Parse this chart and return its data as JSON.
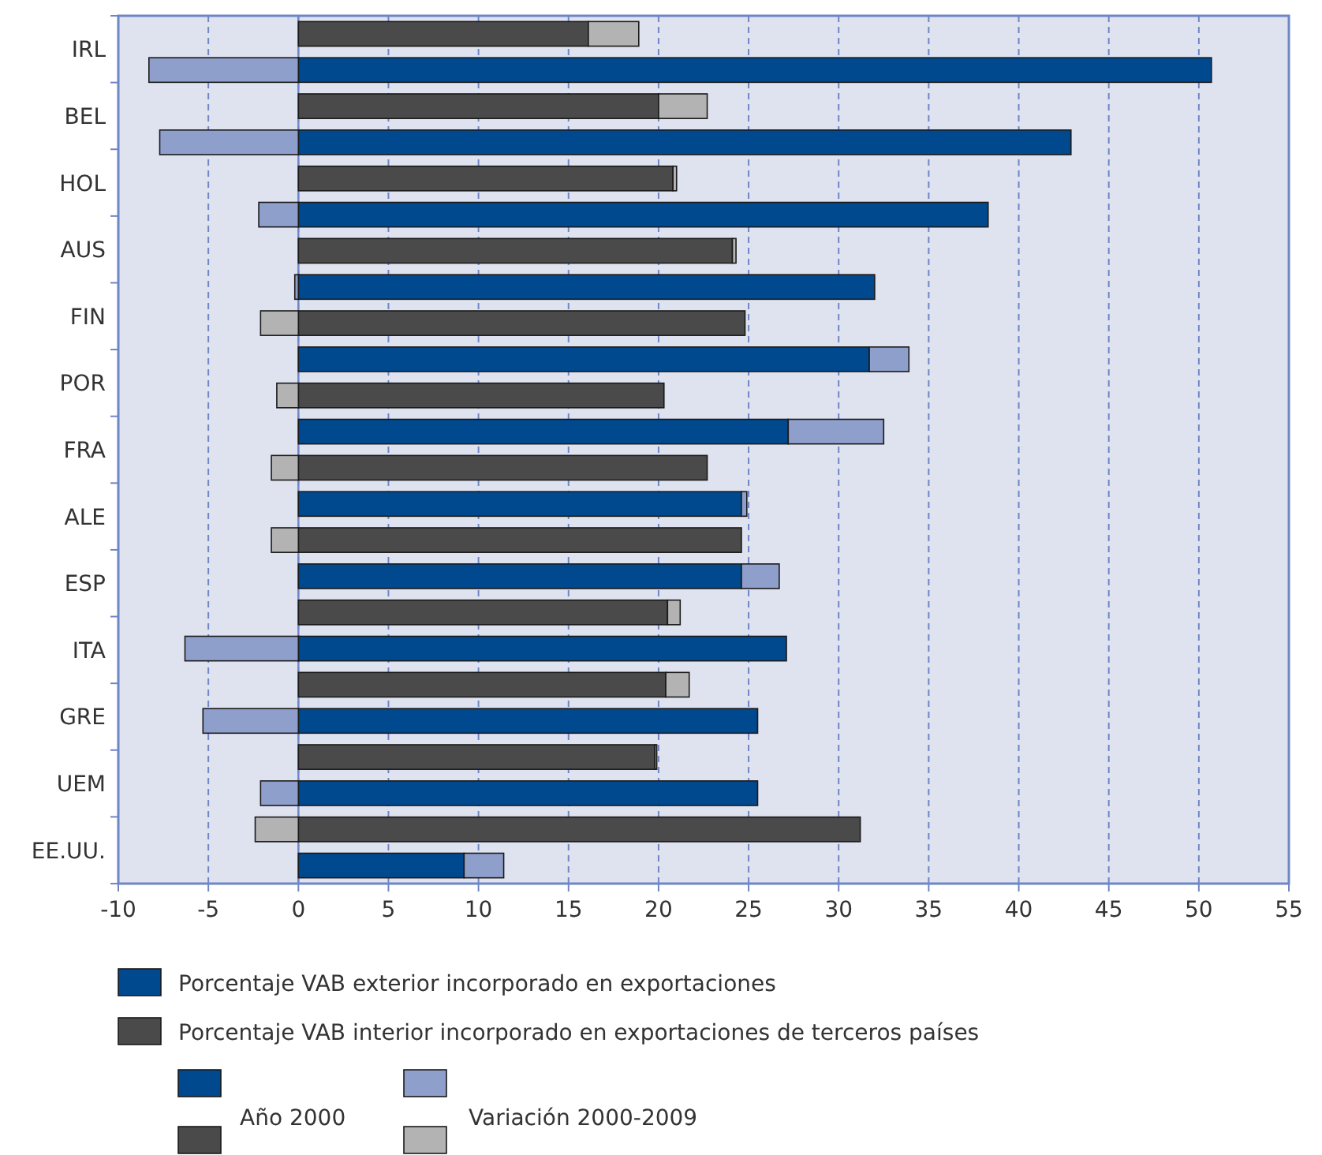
{
  "chart_data": {
    "type": "bar",
    "orientation": "horizontal",
    "stacked": true,
    "categories": [
      null,
      null,
      null,
      null,
      null,
      null,
      null,
      null,
      null,
      null,
      null,
      null,
      null,
      null,
      null,
      null,
      null,
      null,
      null,
      null,
      null,
      null,
      null,
      null
    ],
    "series": [
      {
        "name": "Porcentaje VAB exterior incorporado en exportaciones",
        "color": "#00498f",
        "values": [
          null,
          50.7,
          null,
          42.9,
          null,
          38.3,
          null,
          32.0,
          null,
          31.7,
          null,
          27.2,
          null,
          24.6,
          null,
          24.6,
          null,
          27.1,
          null,
          25.5,
          null,
          25.5,
          null,
          9.2
        ]
      },
      {
        "color": "#8f9fcb",
        "values": [
          null,
          -8.3,
          null,
          -7.7,
          null,
          -2.2,
          null,
          -0.2,
          null,
          2.2,
          null,
          5.3,
          null,
          0.3,
          null,
          2.1,
          null,
          -6.3,
          null,
          -5.3,
          null,
          -2.1,
          null,
          2.2
        ]
      },
      {
        "name": "Porcentaje VAB interior incorporado en exportaciones de terceros países",
        "color": "#4a4a4a",
        "values": [
          16.1,
          null,
          20.0,
          null,
          20.8,
          null,
          24.1,
          null,
          24.8,
          null,
          20.3,
          null,
          22.7,
          null,
          24.6,
          null,
          20.5,
          null,
          20.4,
          null,
          19.8,
          null,
          31.2,
          null
        ]
      },
      {
        "color": "#b3b3b3",
        "values": [
          2.8,
          null,
          2.7,
          null,
          0.2,
          null,
          0.2,
          null,
          -2.1,
          null,
          -1.2,
          null,
          -1.5,
          null,
          -1.5,
          null,
          0.7,
          null,
          1.3,
          null,
          0.1,
          null,
          -2.4,
          null
        ]
      }
    ],
    "xlim": [
      -10,
      55
    ],
    "xticks": [
      -10,
      -5,
      0,
      5,
      10,
      15,
      20,
      25,
      30,
      35,
      40,
      45,
      50,
      55
    ],
    "grid": "x",
    "ref_lines": [
      {
        "axis": "x",
        "value": 0,
        "color": "#6f86c6"
      }
    ],
    "legend": "bottom",
    "annotations": [
      "IRL",
      "BEL",
      "HOL",
      "AUS",
      "FIN",
      "POR",
      "FRA",
      "ALE",
      "ESP",
      "ITA",
      "GRE",
      "UEM",
      "EE.UU.",
      "Año 2000",
      "Variación 2000-2009"
    ]
  }
}
